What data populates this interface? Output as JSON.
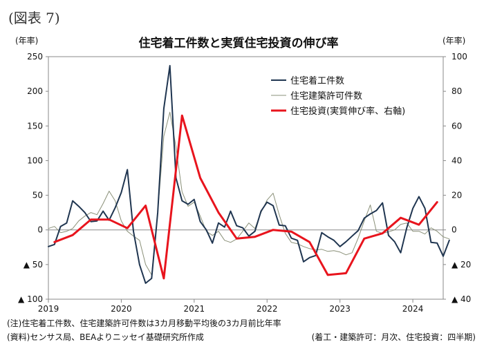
{
  "figure_label": "(図表 7)",
  "notes": {
    "note1": "(注)住宅着工件数、住宅建築許可件数は3カ月移動平均後の3カ月前比年率",
    "source": "(資料)センサス局、BEAよりニッセイ基礎研究所作成",
    "frequency": "(着工・建築許可：月次、住宅投資：四半期)"
  },
  "chart_data": {
    "type": "line",
    "title": "住宅着工件数と実質住宅投資の伸び率",
    "y_left_unit": "(年率)",
    "y_right_unit": "(年率)",
    "y_left_range": [
      -100,
      250
    ],
    "y_right_range": [
      -40,
      100
    ],
    "y_left_ticks": [
      {
        "value": 250,
        "label": "250"
      },
      {
        "value": 200,
        "label": "200"
      },
      {
        "value": 150,
        "label": "150"
      },
      {
        "value": 100,
        "label": "100"
      },
      {
        "value": 50,
        "label": "50"
      },
      {
        "value": 0,
        "label": "0"
      },
      {
        "value": -50,
        "label": "▲ 50"
      },
      {
        "value": -100,
        "label": "▲ 100"
      }
    ],
    "y_right_ticks": [
      {
        "value": 100,
        "label": "100"
      },
      {
        "value": 80,
        "label": "80"
      },
      {
        "value": 60,
        "label": "60"
      },
      {
        "value": 40,
        "label": "40"
      },
      {
        "value": 20,
        "label": "20"
      },
      {
        "value": 0,
        "label": "0"
      },
      {
        "value": -20,
        "label": "▲ 20"
      },
      {
        "value": -40,
        "label": "▲ 40"
      }
    ],
    "x_range": [
      "2019-01",
      "2024-06"
    ],
    "x_ticks": [
      "2019",
      "2020",
      "2021",
      "2022",
      "2023",
      "2024"
    ],
    "grid": false,
    "legend_position": "top-right",
    "series": [
      {
        "name": "住宅着工件数",
        "axis": "left",
        "color": "#1f3550",
        "points": [
          [
            "2019-01",
            -24
          ],
          [
            "2019-02",
            -21
          ],
          [
            "2019-03",
            5
          ],
          [
            "2019-04",
            10
          ],
          [
            "2019-05",
            42
          ],
          [
            "2019-06",
            34
          ],
          [
            "2019-07",
            25
          ],
          [
            "2019-08",
            12
          ],
          [
            "2019-09",
            13
          ],
          [
            "2019-10",
            27
          ],
          [
            "2019-11",
            14
          ],
          [
            "2019-12",
            32
          ],
          [
            "2020-01",
            54
          ],
          [
            "2020-02",
            87
          ],
          [
            "2020-03",
            -2
          ],
          [
            "2020-04",
            -50
          ],
          [
            "2020-05",
            -77
          ],
          [
            "2020-06",
            -70
          ],
          [
            "2020-07",
            25
          ],
          [
            "2020-08",
            175
          ],
          [
            "2020-09",
            237
          ],
          [
            "2020-10",
            75
          ],
          [
            "2020-11",
            42
          ],
          [
            "2020-12",
            37
          ],
          [
            "2021-01",
            44
          ],
          [
            "2021-02",
            12
          ],
          [
            "2021-03",
            0
          ],
          [
            "2021-04",
            -19
          ],
          [
            "2021-05",
            10
          ],
          [
            "2021-06",
            4
          ],
          [
            "2021-07",
            27
          ],
          [
            "2021-08",
            6
          ],
          [
            "2021-09",
            3
          ],
          [
            "2021-10",
            -9
          ],
          [
            "2021-11",
            -2
          ],
          [
            "2021-12",
            27
          ],
          [
            "2022-01",
            40
          ],
          [
            "2022-02",
            35
          ],
          [
            "2022-03",
            7
          ],
          [
            "2022-04",
            6
          ],
          [
            "2022-05",
            -12
          ],
          [
            "2022-06",
            -15
          ],
          [
            "2022-07",
            -46
          ],
          [
            "2022-08",
            -40
          ],
          [
            "2022-09",
            -37
          ],
          [
            "2022-10",
            -4
          ],
          [
            "2022-11",
            -10
          ],
          [
            "2022-12",
            -15
          ],
          [
            "2023-01",
            -24
          ],
          [
            "2023-02",
            -17
          ],
          [
            "2023-03",
            -9
          ],
          [
            "2023-04",
            -1
          ],
          [
            "2023-05",
            17
          ],
          [
            "2023-06",
            23
          ],
          [
            "2023-07",
            28
          ],
          [
            "2023-08",
            39
          ],
          [
            "2023-09",
            -8
          ],
          [
            "2023-10",
            -17
          ],
          [
            "2023-11",
            -33
          ],
          [
            "2023-12",
            3
          ],
          [
            "2024-01",
            31
          ],
          [
            "2024-02",
            48
          ],
          [
            "2024-03",
            31
          ],
          [
            "2024-04",
            -18
          ],
          [
            "2024-05",
            -19
          ],
          [
            "2024-06",
            -38
          ],
          [
            "2024-07",
            -15
          ]
        ]
      },
      {
        "name": "住宅建築許可件数",
        "axis": "left",
        "color": "#8a9078",
        "points": [
          [
            "2019-01",
            2
          ],
          [
            "2019-02",
            5
          ],
          [
            "2019-03",
            -4
          ],
          [
            "2019-04",
            -2
          ],
          [
            "2019-05",
            2
          ],
          [
            "2019-06",
            13
          ],
          [
            "2019-07",
            20
          ],
          [
            "2019-08",
            25
          ],
          [
            "2019-09",
            22
          ],
          [
            "2019-10",
            38
          ],
          [
            "2019-11",
            56
          ],
          [
            "2019-12",
            42
          ],
          [
            "2020-01",
            13
          ],
          [
            "2020-02",
            -2
          ],
          [
            "2020-03",
            -9
          ],
          [
            "2020-04",
            -15
          ],
          [
            "2020-05",
            -50
          ],
          [
            "2020-06",
            -65
          ],
          [
            "2020-07",
            25
          ],
          [
            "2020-08",
            135
          ],
          [
            "2020-09",
            170
          ],
          [
            "2020-10",
            120
          ],
          [
            "2020-11",
            55
          ],
          [
            "2020-12",
            34
          ],
          [
            "2021-01",
            40
          ],
          [
            "2021-02",
            20
          ],
          [
            "2021-03",
            -2
          ],
          [
            "2021-04",
            -8
          ],
          [
            "2021-05",
            -2
          ],
          [
            "2021-06",
            -15
          ],
          [
            "2021-07",
            -18
          ],
          [
            "2021-08",
            -13
          ],
          [
            "2021-09",
            -2
          ],
          [
            "2021-10",
            10
          ],
          [
            "2021-11",
            2
          ],
          [
            "2021-12",
            25
          ],
          [
            "2022-01",
            43
          ],
          [
            "2022-02",
            53
          ],
          [
            "2022-03",
            22
          ],
          [
            "2022-04",
            -5
          ],
          [
            "2022-05",
            -18
          ],
          [
            "2022-06",
            -20
          ],
          [
            "2022-07",
            -24
          ],
          [
            "2022-08",
            -27
          ],
          [
            "2022-09",
            -29
          ],
          [
            "2022-10",
            -28
          ],
          [
            "2022-11",
            -31
          ],
          [
            "2022-12",
            -30
          ],
          [
            "2023-01",
            -32
          ],
          [
            "2023-02",
            -36
          ],
          [
            "2023-03",
            -33
          ],
          [
            "2023-04",
            -12
          ],
          [
            "2023-05",
            13
          ],
          [
            "2023-06",
            36
          ],
          [
            "2023-07",
            -2
          ],
          [
            "2023-08",
            -5
          ],
          [
            "2023-09",
            -3
          ],
          [
            "2023-10",
            0
          ],
          [
            "2023-11",
            8
          ],
          [
            "2023-12",
            10
          ],
          [
            "2024-01",
            -2
          ],
          [
            "2024-02",
            -2
          ],
          [
            "2024-03",
            -6
          ],
          [
            "2024-04",
            3
          ],
          [
            "2024-05",
            -2
          ],
          [
            "2024-06",
            -10
          ],
          [
            "2024-07",
            -13
          ]
        ]
      },
      {
        "name": "住宅投資(実質伸び率、右軸)",
        "axis": "right",
        "color": "#e8141d",
        "points": [
          [
            "2019-02",
            -7
          ],
          [
            "2019-05",
            -3
          ],
          [
            "2019-08",
            6
          ],
          [
            "2019-11",
            6
          ],
          [
            "2020-02",
            1
          ],
          [
            "2020-05",
            14
          ],
          [
            "2020-08",
            -28
          ],
          [
            "2020-11",
            66
          ],
          [
            "2021-02",
            30
          ],
          [
            "2021-05",
            10
          ],
          [
            "2021-08",
            -5
          ],
          [
            "2021-11",
            -4
          ],
          [
            "2022-02",
            0
          ],
          [
            "2022-05",
            -1
          ],
          [
            "2022-08",
            -7
          ],
          [
            "2022-11",
            -26
          ],
          [
            "2023-02",
            -25
          ],
          [
            "2023-05",
            -5
          ],
          [
            "2023-08",
            -2
          ],
          [
            "2023-11",
            7
          ],
          [
            "2024-02",
            3
          ],
          [
            "2024-05",
            16
          ]
        ]
      }
    ]
  }
}
